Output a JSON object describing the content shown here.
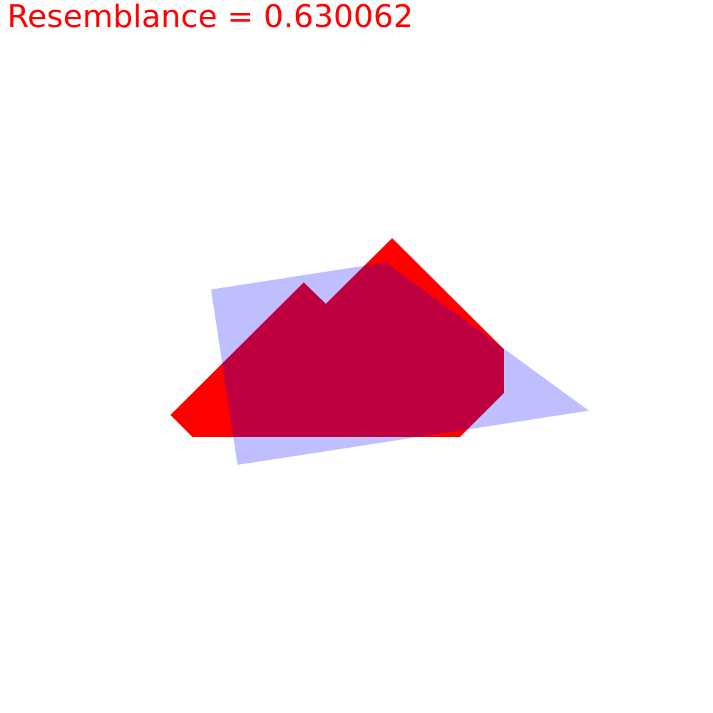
{
  "header": {
    "label": "Resemblance",
    "equals": "=",
    "value": "0.630062",
    "text": "Resemblance = 0.630062"
  },
  "colors": {
    "background": "#ffffff",
    "title": "#ff0000",
    "target_shape": "#ff0000",
    "candidate_shape": "#0000ff"
  },
  "shapes": {
    "target": {
      "color": "#ff0000",
      "opacity": 1.0
    },
    "candidate": {
      "color": "#0000ff",
      "opacity": 0.25
    }
  },
  "resemblance": 0.630062
}
